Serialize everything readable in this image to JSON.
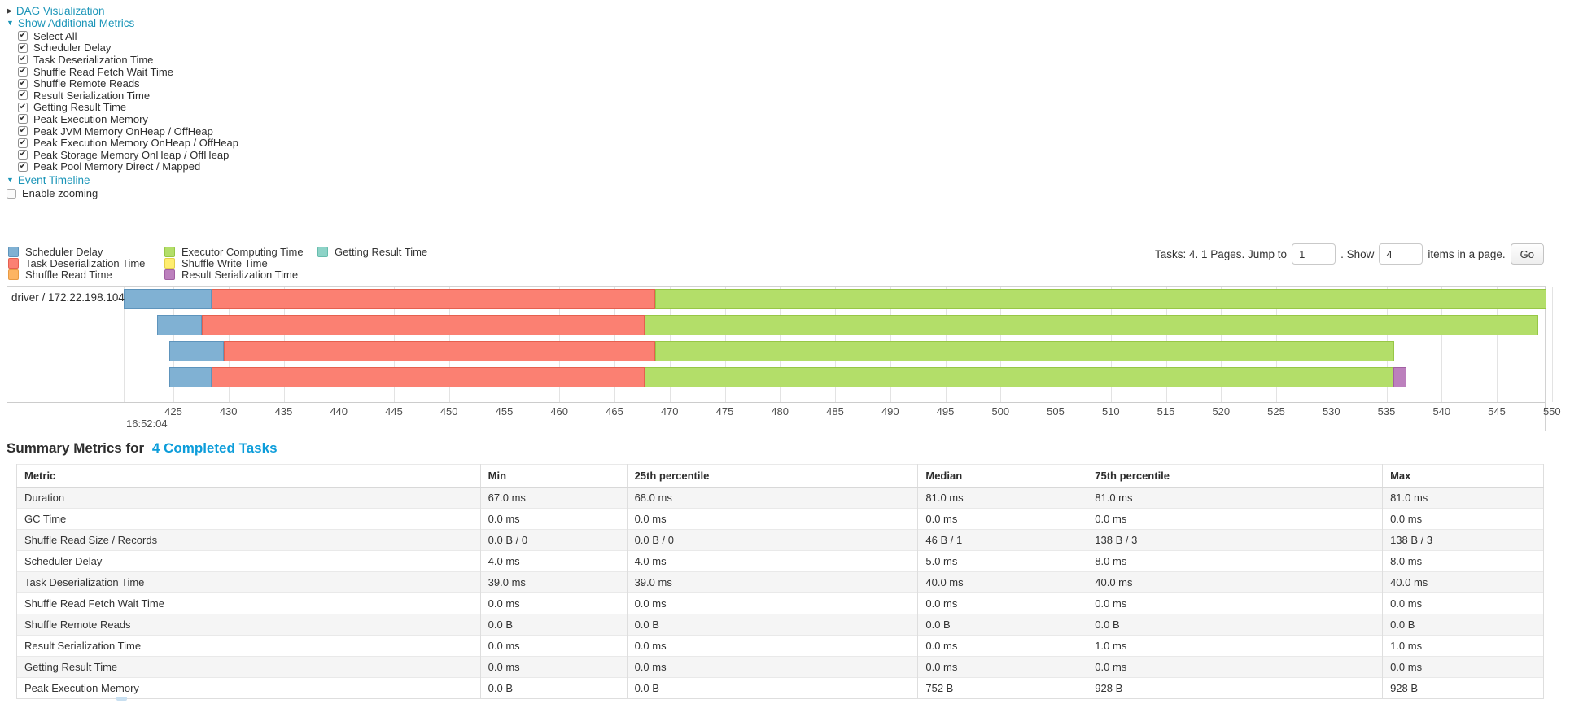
{
  "colors": {
    "link": "#1b95b8",
    "tasks_link": "#0d9dda",
    "scheduler_delay": {
      "fill": "#80B1D3",
      "border": "#5E94BC"
    },
    "task_deserialization": {
      "fill": "#FB8072",
      "border": "#E5604F"
    },
    "shuffle_read": {
      "fill": "#FDB462",
      "border": "#E89A43"
    },
    "executor_computing": {
      "fill": "#B3DE69",
      "border": "#97C746"
    },
    "shuffle_write": {
      "fill": "#FFED6F",
      "border": "#E2CF4B"
    },
    "result_serialization": {
      "fill": "#BC80BD",
      "border": "#A160A2"
    },
    "getting_result": {
      "fill": "#8DD3C7",
      "border": "#67BCAD"
    }
  },
  "controls": {
    "dag_label": "DAG Visualization",
    "show_metrics_label": "Show Additional Metrics",
    "metric_checkboxes": [
      "Select All",
      "Scheduler Delay",
      "Task Deserialization Time",
      "Shuffle Read Fetch Wait Time",
      "Shuffle Remote Reads",
      "Result Serialization Time",
      "Getting Result Time",
      "Peak Execution Memory",
      "Peak JVM Memory OnHeap / OffHeap",
      "Peak Execution Memory OnHeap / OffHeap",
      "Peak Storage Memory OnHeap / OffHeap",
      "Peak Pool Memory Direct / Mapped"
    ],
    "event_timeline_label": "Event Timeline",
    "enable_zooming_label": "Enable zooming"
  },
  "pagination": {
    "tasks_label": "Tasks: 4. 1 Pages. Jump to",
    "jump_value": "1",
    "show_label": ". Show",
    "show_value": "4",
    "items_label": "items in a page.",
    "go_label": "Go"
  },
  "chart_data": {
    "type": "timeline",
    "executor_label": "driver / 172.22.198.104",
    "axis": {
      "min": 420.5,
      "max": 549.5,
      "tick_step": 5,
      "ticks": [
        425,
        430,
        435,
        440,
        445,
        450,
        455,
        460,
        465,
        470,
        475,
        480,
        485,
        490,
        495,
        500,
        505,
        510,
        515,
        520,
        525,
        530,
        535,
        540,
        545,
        550
      ],
      "major_label": "16:52:04"
    },
    "legend_columns": [
      [
        {
          "key": "scheduler_delay",
          "label": "Scheduler Delay"
        },
        {
          "key": "task_deserialization",
          "label": "Task Deserialization Time"
        },
        {
          "key": "shuffle_read",
          "label": "Shuffle Read Time"
        }
      ],
      [
        {
          "key": "executor_computing",
          "label": "Executor Computing Time"
        },
        {
          "key": "shuffle_write",
          "label": "Shuffle Write Time"
        },
        {
          "key": "result_serialization",
          "label": "Result Serialization Time"
        }
      ],
      [
        {
          "key": "getting_result",
          "label": "Getting Result Time"
        }
      ]
    ],
    "tasks": [
      {
        "segments": [
          {
            "name": "scheduler_delay",
            "start": 420.5,
            "end": 428.5
          },
          {
            "name": "task_deserialization",
            "start": 428.5,
            "end": 468.7
          },
          {
            "name": "executor_computing",
            "start": 468.7,
            "end": 549.5
          }
        ]
      },
      {
        "segments": [
          {
            "name": "scheduler_delay",
            "start": 423.5,
            "end": 427.6
          },
          {
            "name": "task_deserialization",
            "start": 427.6,
            "end": 467.7
          },
          {
            "name": "executor_computing",
            "start": 467.7,
            "end": 548.8
          }
        ]
      },
      {
        "segments": [
          {
            "name": "scheduler_delay",
            "start": 424.6,
            "end": 429.6
          },
          {
            "name": "task_deserialization",
            "start": 429.6,
            "end": 468.7
          },
          {
            "name": "executor_computing",
            "start": 468.7,
            "end": 535.7
          }
        ]
      },
      {
        "segments": [
          {
            "name": "scheduler_delay",
            "start": 424.6,
            "end": 428.5
          },
          {
            "name": "task_deserialization",
            "start": 428.5,
            "end": 467.7
          },
          {
            "name": "executor_computing",
            "start": 467.7,
            "end": 535.6
          },
          {
            "name": "result_serialization",
            "start": 535.6,
            "end": 536.8
          }
        ]
      }
    ]
  },
  "summary": {
    "title_prefix": "Summary Metrics for",
    "tasks_link": "4 Completed Tasks",
    "columns": [
      "Metric",
      "Min",
      "25th percentile",
      "Median",
      "75th percentile",
      "Max"
    ],
    "rows": [
      [
        "Duration",
        "67.0 ms",
        "68.0 ms",
        "81.0 ms",
        "81.0 ms",
        "81.0 ms"
      ],
      [
        "GC Time",
        "0.0 ms",
        "0.0 ms",
        "0.0 ms",
        "0.0 ms",
        "0.0 ms"
      ],
      [
        "Shuffle Read Size / Records",
        "0.0 B / 0",
        "0.0 B / 0",
        "46 B / 1",
        "138 B / 3",
        "138 B / 3"
      ],
      [
        "Scheduler Delay",
        "4.0 ms",
        "4.0 ms",
        "5.0 ms",
        "8.0 ms",
        "8.0 ms"
      ],
      [
        "Task Deserialization Time",
        "39.0 ms",
        "39.0 ms",
        "40.0 ms",
        "40.0 ms",
        "40.0 ms"
      ],
      [
        "Shuffle Read Fetch Wait Time",
        "0.0 ms",
        "0.0 ms",
        "0.0 ms",
        "0.0 ms",
        "0.0 ms"
      ],
      [
        "Shuffle Remote Reads",
        "0.0 B",
        "0.0 B",
        "0.0 B",
        "0.0 B",
        "0.0 B"
      ],
      [
        "Result Serialization Time",
        "0.0 ms",
        "0.0 ms",
        "0.0 ms",
        "1.0 ms",
        "1.0 ms"
      ],
      [
        "Getting Result Time",
        "0.0 ms",
        "0.0 ms",
        "0.0 ms",
        "0.0 ms",
        "0.0 ms"
      ],
      [
        "Peak Execution Memory",
        "0.0 B",
        "0.0 B",
        "752 B",
        "928 B",
        "928 B"
      ]
    ]
  }
}
